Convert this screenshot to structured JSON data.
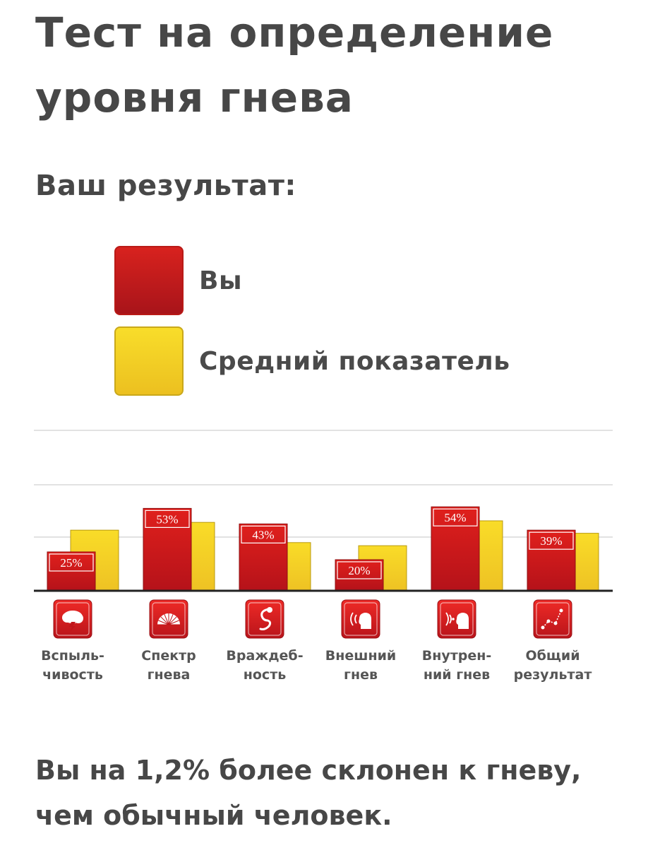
{
  "page": {
    "title": "Тест на определение уровня гнева",
    "subtitle": "Ваш результат:",
    "result_text": "Вы на 1,2% более склонен к гневу, чем обычный человек."
  },
  "legend": [
    {
      "label": "Вы",
      "color": "#c81a1a"
    },
    {
      "label": "Средний показатель",
      "color": "#f2cc25"
    }
  ],
  "chart_data": {
    "type": "bar",
    "categories": [
      "Вспыль-чивость",
      "Спектр гнева",
      "Враждеб-ность",
      "Внешний гнев",
      "Внутрен-ний гнев",
      "Общий результат"
    ],
    "category_lines": [
      [
        "Вспыль-",
        "чивость"
      ],
      [
        "Спектр",
        "гнева"
      ],
      [
        "Враждеб-",
        "ность"
      ],
      [
        "Внешний",
        "гнев"
      ],
      [
        "Внутрен-",
        "ний гнев"
      ],
      [
        "Общий",
        "результат"
      ]
    ],
    "icons": [
      "storm-cloud-icon",
      "anger-spectrum-icon",
      "snake-icon",
      "shouting-head-icon",
      "inner-voice-head-icon",
      "overall-graph-icon"
    ],
    "series": [
      {
        "name": "Вы",
        "values": [
          25,
          53,
          43,
          20,
          54,
          39
        ],
        "labels": [
          "25%",
          "53%",
          "43%",
          "20%",
          "54%",
          "39%"
        ]
      },
      {
        "name": "Средний показатель",
        "values": [
          39,
          44,
          31,
          29,
          45,
          37
        ]
      }
    ],
    "ylim": [
      0,
      100
    ],
    "grid": true
  }
}
